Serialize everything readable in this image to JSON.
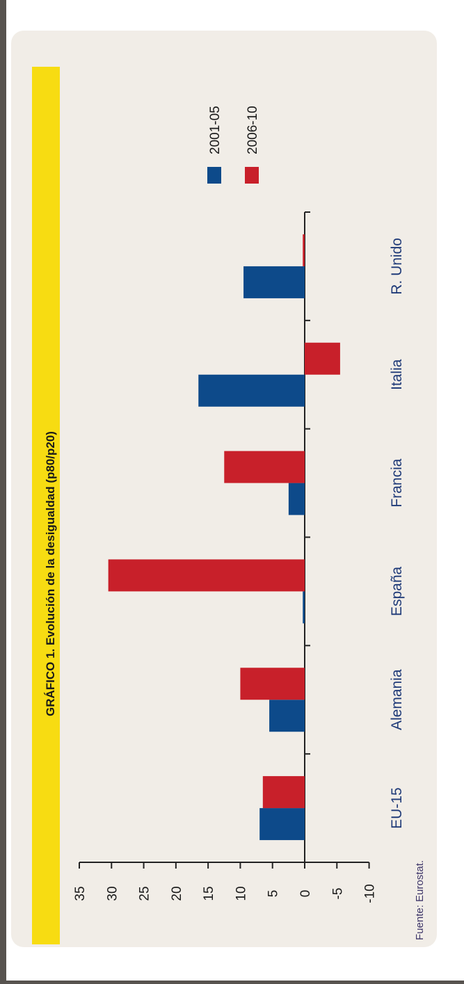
{
  "chart_data": {
    "type": "bar",
    "orientation": "rotated-90",
    "title_label": "GRÁFICO 1.",
    "title": "Evolución de la desigualdad (p80/p20)",
    "source": "Fuente: Eurostat.",
    "categories": [
      "EU-15",
      "Alemania",
      "España",
      "Francia",
      "Italia",
      "R. Unido"
    ],
    "series": [
      {
        "name": "2001-05",
        "color": "#0d4a8a",
        "values": [
          7,
          5.5,
          0.3,
          2.5,
          16.5,
          9.5
        ]
      },
      {
        "name": "2006-10",
        "color": "#c8202a",
        "values": [
          6.5,
          10,
          30.5,
          12.5,
          -5.5,
          0.3
        ]
      }
    ],
    "ylim": [
      -10,
      35
    ],
    "yticks": [
      35,
      30,
      25,
      20,
      15,
      10,
      5,
      0,
      -5,
      -10
    ],
    "grid": false,
    "legend_position": "top-right",
    "title_band_color": "#f7dc12"
  }
}
